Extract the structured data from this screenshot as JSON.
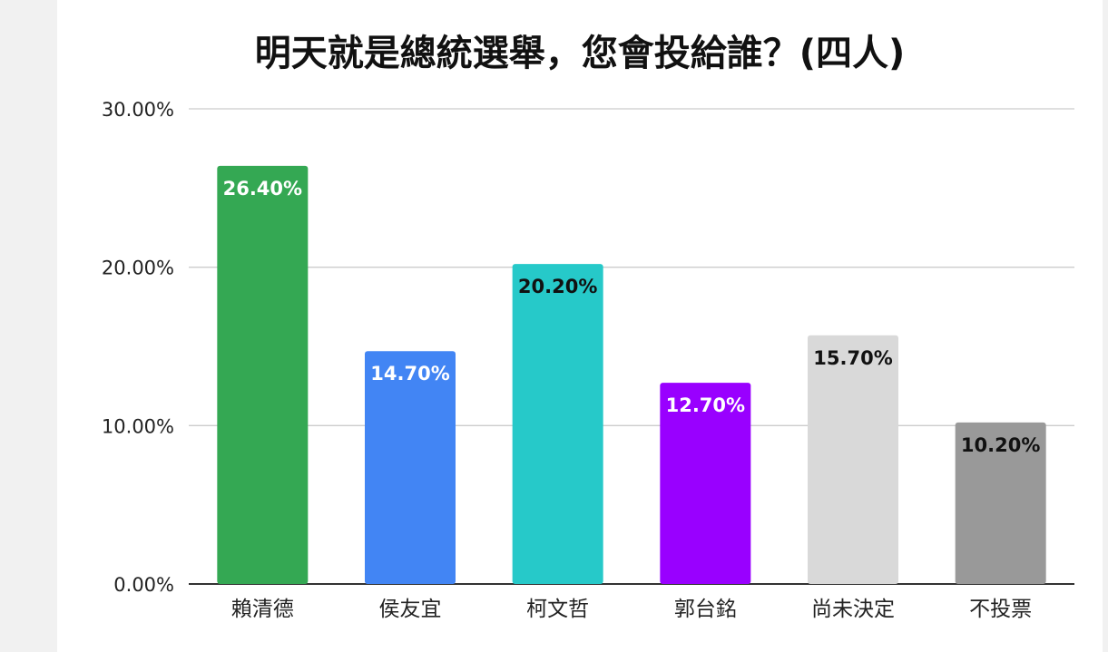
{
  "chart_data": {
    "type": "bar",
    "title": "明天就是總統選舉，您會投給誰？(四人)",
    "xlabel": "",
    "ylabel": "",
    "ylim": [
      0,
      30
    ],
    "yticks": [
      "0.00%",
      "10.00%",
      "20.00%",
      "30.00%"
    ],
    "ytick_values": [
      0,
      10,
      20,
      30
    ],
    "grid": true,
    "legend": "none",
    "categories": [
      "賴清德",
      "侯友宜",
      "柯文哲",
      "郭台銘",
      "尚未決定",
      "不投票"
    ],
    "values": [
      26.4,
      14.7,
      20.2,
      12.7,
      15.7,
      10.2
    ],
    "data_labels": [
      "26.40%",
      "14.70%",
      "20.20%",
      "12.70%",
      "15.70%",
      "10.20%"
    ],
    "colors": [
      "#34a853",
      "#4285f4",
      "#26c9c9",
      "#9900ff",
      "#d9d9d9",
      "#999999"
    ],
    "label_colors": [
      "#ffffff",
      "#ffffff",
      "#111111",
      "#ffffff",
      "#111111",
      "#111111"
    ]
  }
}
